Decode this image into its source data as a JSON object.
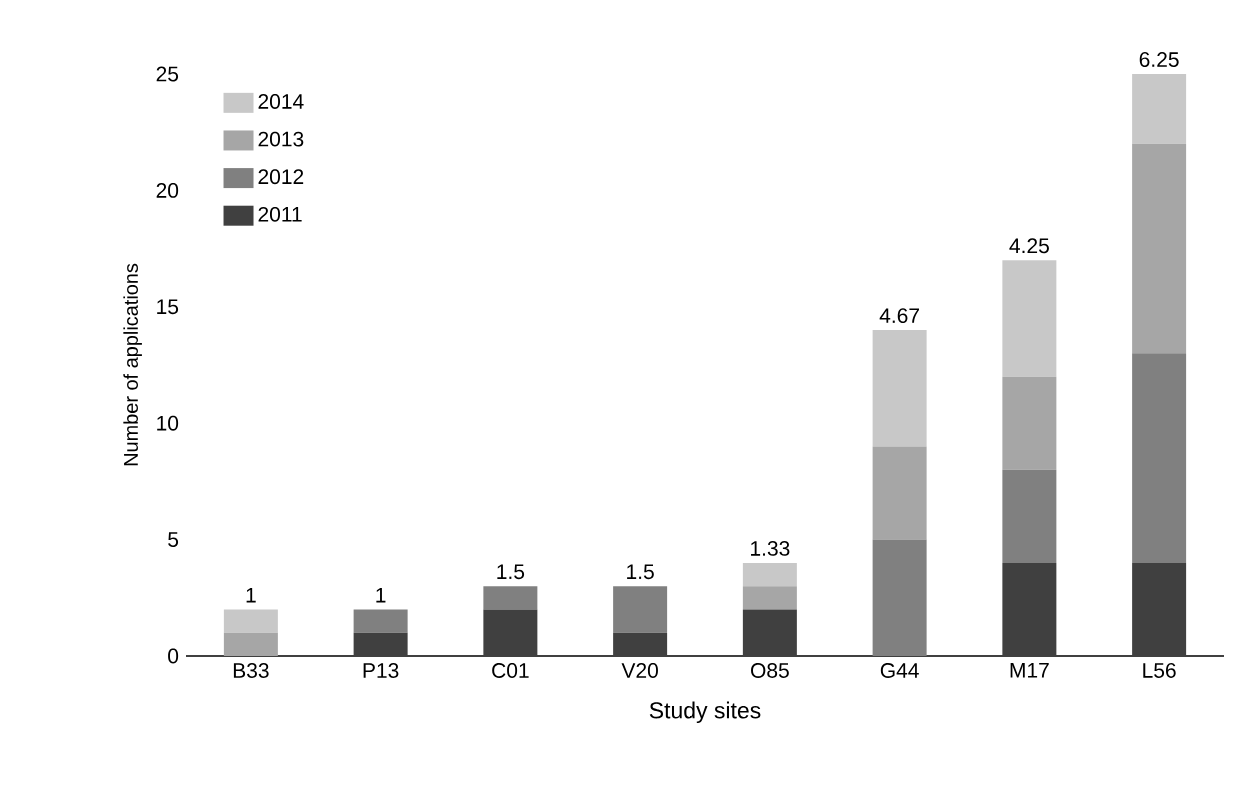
{
  "chart_data": {
    "type": "bar",
    "stacked": true,
    "xlabel": "Study sites",
    "ylabel": "Number of applications",
    "categories": [
      "B33",
      "P13",
      "C01",
      "V20",
      "O85",
      "G44",
      "M17",
      "L56"
    ],
    "series": [
      {
        "name": "2011",
        "color": "#404040",
        "values": [
          0,
          1,
          2,
          1,
          2,
          0,
          4,
          4
        ]
      },
      {
        "name": "2012",
        "color": "#808080",
        "values": [
          0,
          1,
          1,
          2,
          0,
          5,
          4,
          9
        ]
      },
      {
        "name": "2013",
        "color": "#a6a6a6",
        "values": [
          1,
          0,
          0,
          0,
          1,
          4,
          4,
          9
        ]
      },
      {
        "name": "2014",
        "color": "#c8c8c8",
        "values": [
          1,
          0,
          0,
          0,
          1,
          5,
          5,
          3
        ]
      }
    ],
    "ylim": [
      0,
      25
    ],
    "yticks": [
      0,
      5,
      10,
      15,
      20,
      25
    ],
    "legend": "top left",
    "grid": false,
    "annotations": [
      {
        "text": "1",
        "x": "B33",
        "y": 2
      },
      {
        "text": "1",
        "x": "P13",
        "y": 2
      },
      {
        "text": "1.5",
        "x": "C01",
        "y": 3
      },
      {
        "text": "1.5",
        "x": "V20",
        "y": 3
      },
      {
        "text": "1.33",
        "x": "O85",
        "y": 4
      },
      {
        "text": "4.67",
        "x": "G44",
        "y": 14
      },
      {
        "text": "4.25",
        "x": "M17",
        "y": 17
      },
      {
        "text": "6.25",
        "x": "L56",
        "y": 25
      }
    ]
  }
}
